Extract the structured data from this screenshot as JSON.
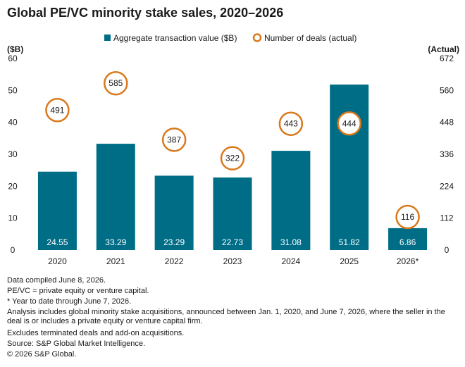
{
  "title": "Global PE/VC minority stake sales, 2020–2026",
  "chart_data": {
    "type": "bar",
    "title": "Global PE/VC minority stake sales, 2020–2026",
    "categories": [
      "2020",
      "2021",
      "2022",
      "2023",
      "2024",
      "2025",
      "2026*"
    ],
    "series": [
      {
        "name": "Aggregate transaction value ($B)",
        "type": "bar",
        "axis": "left",
        "values": [
          24.55,
          33.29,
          23.29,
          22.73,
          31.08,
          51.82,
          6.86
        ],
        "labels": [
          "24.55",
          "33.29",
          "23.29",
          "22.73",
          "31.08",
          "51.82",
          "6.86"
        ]
      },
      {
        "name": "Number of deals (actual)",
        "type": "scatter",
        "axis": "right",
        "values": [
          491,
          585,
          387,
          322,
          443,
          444,
          116
        ],
        "labels": [
          "491",
          "585",
          "387",
          "322",
          "443",
          "444",
          "116"
        ]
      }
    ],
    "y_left": {
      "label": "($B)",
      "ylim": [
        0,
        60
      ],
      "ticks": [
        "0",
        "10",
        "20",
        "30",
        "40",
        "50",
        "60"
      ]
    },
    "y_right": {
      "label": "(Actual)",
      "ylim": [
        0,
        672
      ],
      "ticks": [
        "0",
        "112",
        "224",
        "336",
        "448",
        "560",
        "672"
      ]
    },
    "legend": {
      "placement": "top-center",
      "bar_label": "Aggregate transaction value ($B)",
      "circle_label": "Number of deals (actual)"
    },
    "grid": false,
    "colors": {
      "bar": "#006d87",
      "circle": "#d9791c",
      "text": "#1a1a1a",
      "bar_text": "#ffffff"
    }
  },
  "footnotes": {
    "compiled": "Data compiled June 8, 2026.",
    "pevc": "PE/VC = private equity or venture capital.",
    "ytd": "* Year to date through June 7, 2026.",
    "analysis": "Analysis includes global minority stake acquisitions, announced between Jan. 1, 2020, and June 7, 2026, where the seller in the deal is or includes a private equity or venture capital firm.",
    "excludes": "Excludes terminated deals and add-on acquisitions.",
    "source": "Source: S&P Global Market Intelligence.",
    "copyright": "© 2026 S&P Global."
  }
}
